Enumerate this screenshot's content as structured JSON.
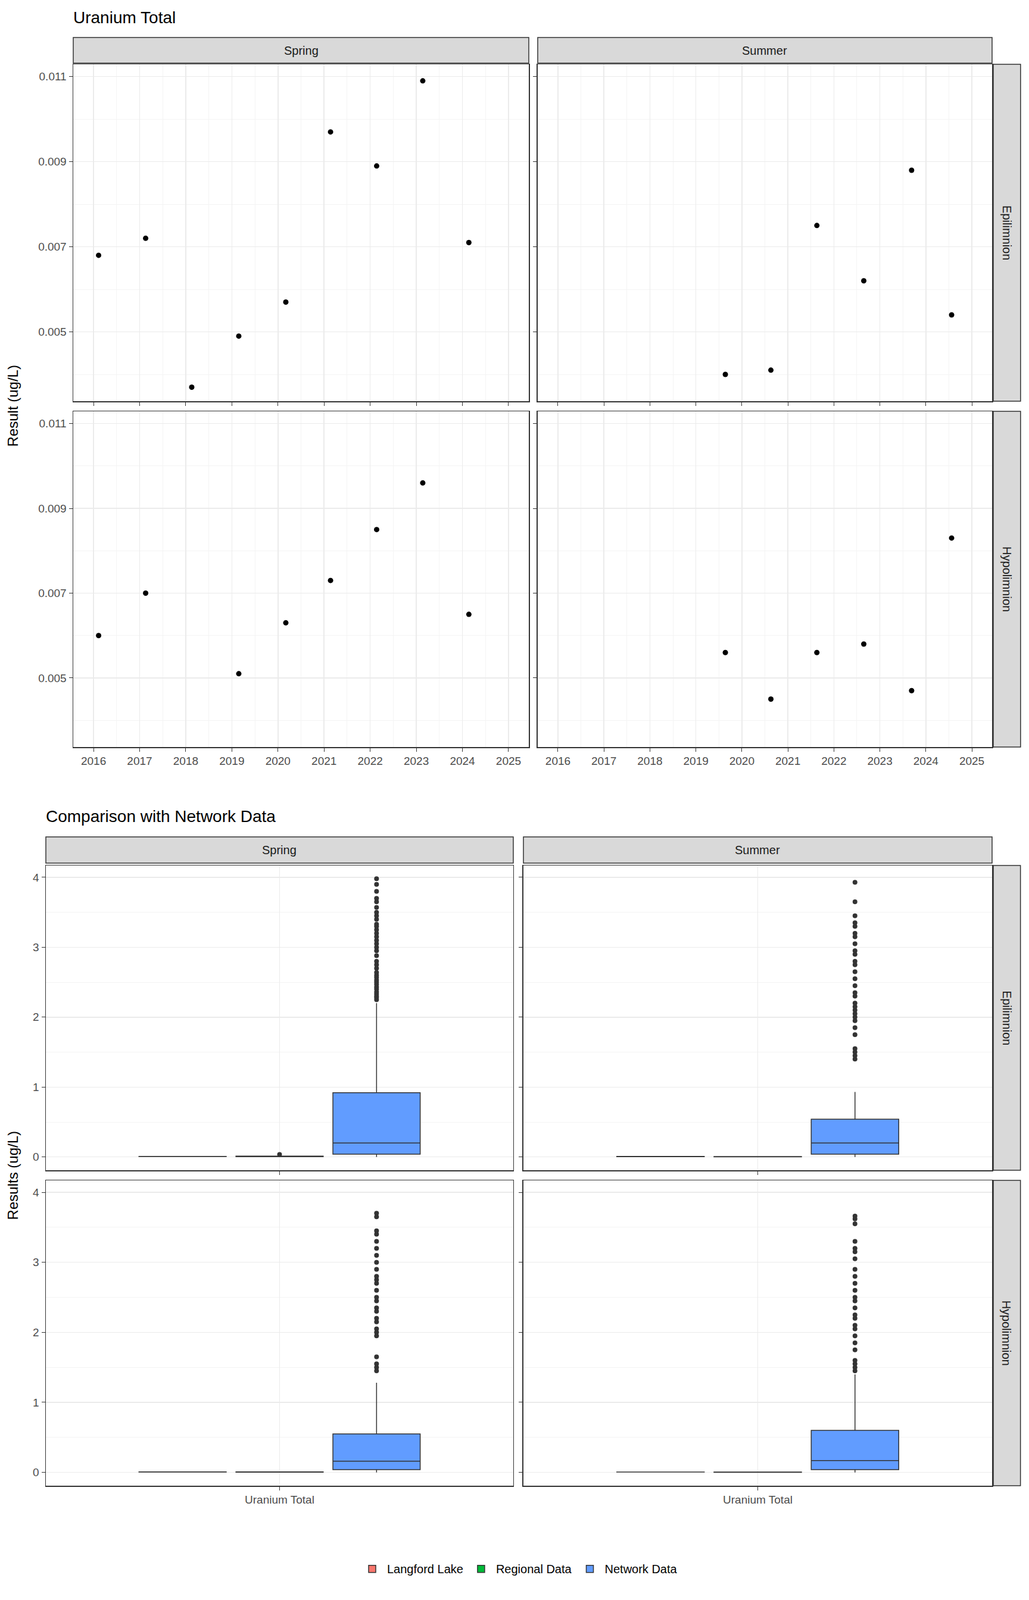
{
  "chart_data": [
    {
      "type": "scatter",
      "title": "Uranium Total",
      "y_label": "Result (ug/L)",
      "columns": [
        "Spring",
        "Summer"
      ],
      "rows": [
        "Epilimnion",
        "Hypolimnion"
      ],
      "xlim": [
        2015.56,
        2025.44
      ],
      "xticks": [
        2016,
        2017,
        2018,
        2019,
        2020,
        2021,
        2022,
        2023,
        2024,
        2025
      ],
      "ylim": [
        0.00337,
        0.01129
      ],
      "yticks": [
        0.005,
        0.007,
        0.009,
        0.011
      ],
      "grid": true,
      "color": "#000000",
      "marker": "circle",
      "panels": [
        {
          "column": "Spring",
          "row": "Epilimnion",
          "x": [
            2016.11,
            2017.13,
            2018.13,
            2019.15,
            2020.17,
            2021.14,
            2022.14,
            2023.14,
            2024.14
          ],
          "values": [
            0.0068,
            0.0072,
            0.0037,
            0.0049,
            0.0057,
            0.0097,
            0.0089,
            0.0109,
            0.0071
          ]
        },
        {
          "column": "Summer",
          "row": "Epilimnion",
          "x": [
            2019.64,
            2020.63,
            2021.63,
            2022.65,
            2023.69,
            2024.56
          ],
          "values": [
            0.004,
            0.0041,
            0.0075,
            0.0062,
            0.0088,
            0.0054
          ]
        },
        {
          "column": "Spring",
          "row": "Hypolimnion",
          "x": [
            2016.11,
            2017.13,
            2019.15,
            2020.17,
            2021.14,
            2022.14,
            2023.14,
            2024.14
          ],
          "values": [
            0.006,
            0.007,
            0.0051,
            0.0063,
            0.0073,
            0.0085,
            0.0096,
            0.0065
          ]
        },
        {
          "column": "Summer",
          "row": "Hypolimnion",
          "x": [
            2019.64,
            2020.63,
            2021.63,
            2022.65,
            2023.69,
            2024.56
          ],
          "values": [
            0.0056,
            0.0045,
            0.0056,
            0.0058,
            0.0047,
            0.0083
          ]
        }
      ]
    },
    {
      "type": "box",
      "title": "Comparison with Network Data",
      "y_label": "Results (ug/L)",
      "categories": [
        "Uranium Total"
      ],
      "columns": [
        "Spring",
        "Summer"
      ],
      "rows": [
        "Epilimnion",
        "Hypolimnion"
      ],
      "ylim": [
        -0.19,
        4.17
      ],
      "yticks": [
        0,
        1,
        2,
        3,
        4
      ],
      "grid": true,
      "legend": "bottom",
      "series": [
        {
          "name": "Langford Lake",
          "color": "#F8766D"
        },
        {
          "name": "Regional Data",
          "color": "#00BA38"
        },
        {
          "name": "Network Data",
          "color": "#619CFF"
        }
      ],
      "panels": [
        {
          "column": "Spring",
          "row": "Epilimnion",
          "boxes": [
            {
              "series": "Langford Lake",
              "category": "Uranium Total",
              "min": 0.0037,
              "q1": 0.0057,
              "median": 0.0071,
              "q3": 0.0089,
              "max": 0.0109,
              "outliers": []
            },
            {
              "series": "Regional Data",
              "category": "Uranium Total",
              "min": 0.001,
              "q1": 0.004,
              "median": 0.008,
              "q3": 0.012,
              "max": 0.02,
              "outliers": [
                0.035
              ]
            },
            {
              "series": "Network Data",
              "category": "Uranium Total",
              "min": 0.0,
              "q1": 0.04,
              "median": 0.2,
              "q3": 0.92,
              "max": 2.2,
              "outliers": [
                2.25,
                2.28,
                2.3,
                2.33,
                2.36,
                2.4,
                2.43,
                2.47,
                2.5,
                2.53,
                2.57,
                2.6,
                2.64,
                2.7,
                2.75,
                2.8,
                2.88,
                2.95,
                3.0,
                3.05,
                3.1,
                3.15,
                3.2,
                3.25,
                3.3,
                3.33,
                3.4,
                3.45,
                3.5,
                3.57,
                3.65,
                3.7,
                3.8,
                3.9,
                3.98
              ]
            }
          ]
        },
        {
          "column": "Summer",
          "row": "Epilimnion",
          "boxes": [
            {
              "series": "Langford Lake",
              "category": "Uranium Total",
              "min": 0.004,
              "q1": 0.0045,
              "median": 0.0058,
              "q3": 0.0075,
              "max": 0.0088,
              "outliers": []
            },
            {
              "series": "Regional Data",
              "category": "Uranium Total",
              "min": 0.001,
              "q1": 0.002,
              "median": 0.004,
              "q3": 0.006,
              "max": 0.01,
              "outliers": []
            },
            {
              "series": "Network Data",
              "category": "Uranium Total",
              "min": 0.0,
              "q1": 0.04,
              "median": 0.2,
              "q3": 0.54,
              "max": 0.93,
              "outliers": [
                1.4,
                1.45,
                1.5,
                1.55,
                1.75,
                1.85,
                1.95,
                2.0,
                2.05,
                2.1,
                2.15,
                2.2,
                2.3,
                2.35,
                2.45,
                2.55,
                2.65,
                2.75,
                2.8,
                2.9,
                2.95,
                3.05,
                3.15,
                3.2,
                3.3,
                3.35,
                3.45,
                3.65,
                3.93
              ]
            }
          ]
        },
        {
          "column": "Spring",
          "row": "Hypolimnion",
          "boxes": [
            {
              "series": "Langford Lake",
              "category": "Uranium Total",
              "min": 0.0051,
              "q1": 0.0062,
              "median": 0.0068,
              "q3": 0.008,
              "max": 0.0096,
              "outliers": []
            },
            {
              "series": "Regional Data",
              "category": "Uranium Total",
              "min": 0.001,
              "q1": 0.003,
              "median": 0.005,
              "q3": 0.008,
              "max": 0.012,
              "outliers": []
            },
            {
              "series": "Network Data",
              "category": "Uranium Total",
              "min": 0.0,
              "q1": 0.04,
              "median": 0.16,
              "q3": 0.55,
              "max": 1.28,
              "outliers": [
                1.45,
                1.5,
                1.55,
                1.65,
                1.95,
                2.0,
                2.05,
                2.15,
                2.2,
                2.3,
                2.35,
                2.45,
                2.5,
                2.6,
                2.7,
                2.75,
                2.8,
                2.9,
                3.0,
                3.1,
                3.2,
                3.3,
                3.4,
                3.45,
                3.65,
                3.7
              ]
            }
          ]
        },
        {
          "column": "Summer",
          "row": "Hypolimnion",
          "boxes": [
            {
              "series": "Langford Lake",
              "category": "Uranium Total",
              "min": 0.0045,
              "q1": 0.0049,
              "median": 0.0056,
              "q3": 0.0058,
              "max": 0.0083,
              "outliers": []
            },
            {
              "series": "Regional Data",
              "category": "Uranium Total",
              "min": 0.001,
              "q1": 0.002,
              "median": 0.004,
              "q3": 0.006,
              "max": 0.01,
              "outliers": []
            },
            {
              "series": "Network Data",
              "category": "Uranium Total",
              "min": 0.0,
              "q1": 0.04,
              "median": 0.17,
              "q3": 0.6,
              "max": 1.4,
              "outliers": [
                1.45,
                1.5,
                1.55,
                1.6,
                1.75,
                1.85,
                1.95,
                2.05,
                2.1,
                2.2,
                2.25,
                2.35,
                2.45,
                2.5,
                2.6,
                2.7,
                2.8,
                2.9,
                3.05,
                3.15,
                3.2,
                3.3,
                3.55,
                3.62,
                3.66
              ]
            }
          ]
        }
      ]
    }
  ]
}
